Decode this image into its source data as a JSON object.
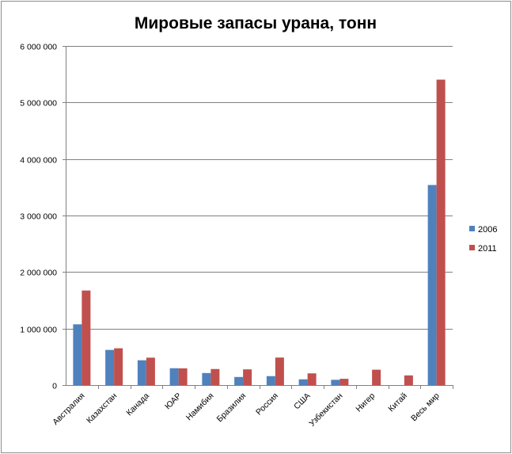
{
  "chart_data": {
    "type": "bar",
    "title": "Мировые запасы урана, тонн",
    "xlabel": "",
    "ylabel": "",
    "ylim": [
      0,
      6000000
    ],
    "yticks": [
      0,
      1000000,
      2000000,
      3000000,
      4000000,
      5000000,
      6000000
    ],
    "ytick_labels": [
      "0",
      "1 000 000",
      "2 000 000",
      "3 000 000",
      "4 000 000",
      "5 000 000",
      "6 000 000"
    ],
    "grid": true,
    "legend_position": "right",
    "categories": [
      "Австралия",
      "Казахстан",
      "Канада",
      "ЮАР",
      "Намибия",
      "Бразилия",
      "Россия",
      "США",
      "Узбекистан",
      "Нигер",
      "Китай",
      "Весь мир"
    ],
    "series": [
      {
        "name": "2006",
        "color": "#4F81BD",
        "values": [
          1075000,
          622000,
          439000,
          298000,
          213000,
          143000,
          158000,
          102000,
          93000,
          0,
          0,
          3540000
        ]
      },
      {
        "name": "2011",
        "color": "#C0504D",
        "values": [
          1673000,
          651000,
          485000,
          296000,
          284000,
          278000,
          487000,
          207000,
          111000,
          272000,
          171000,
          5404000
        ]
      }
    ]
  }
}
